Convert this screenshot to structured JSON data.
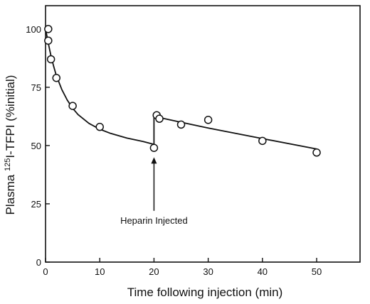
{
  "chart_data": {
    "type": "scatter",
    "xlabel": "Time following injection (min)",
    "ylabel_prefix": "Plasma ",
    "ylabel_superscript": "125",
    "ylabel_suffix": "I-TFPI (%initial)",
    "xlim": [
      0,
      58
    ],
    "ylim": [
      0,
      110
    ],
    "x_ticks": [
      0,
      10,
      20,
      30,
      40,
      50
    ],
    "y_ticks": [
      0,
      25,
      50,
      75,
      100
    ],
    "grid": false,
    "series": [
      {
        "marker": "open-circle",
        "points": [
          {
            "x": 0.5,
            "y": 100
          },
          {
            "x": 0.5,
            "y": 95
          },
          {
            "x": 1,
            "y": 87
          },
          {
            "x": 2,
            "y": 79
          },
          {
            "x": 5,
            "y": 67
          },
          {
            "x": 10,
            "y": 58
          },
          {
            "x": 20,
            "y": 49
          },
          {
            "x": 20.5,
            "y": 63
          },
          {
            "x": 21,
            "y": 61.5
          },
          {
            "x": 25,
            "y": 59
          },
          {
            "x": 30,
            "y": 61
          },
          {
            "x": 40,
            "y": 52
          },
          {
            "x": 50,
            "y": 47
          }
        ]
      }
    ],
    "fit_curves": [
      {
        "points": [
          {
            "x": 0,
            "y": 100
          },
          {
            "x": 0.5,
            "y": 94
          },
          {
            "x": 1,
            "y": 88.5
          },
          {
            "x": 1.5,
            "y": 84
          },
          {
            "x": 2,
            "y": 80
          },
          {
            "x": 3,
            "y": 74
          },
          {
            "x": 4,
            "y": 69.5
          },
          {
            "x": 5,
            "y": 66
          },
          {
            "x": 6,
            "y": 63.3
          },
          {
            "x": 8,
            "y": 59.5
          },
          {
            "x": 10,
            "y": 57
          },
          {
            "x": 12,
            "y": 55.2
          },
          {
            "x": 15,
            "y": 53.2
          },
          {
            "x": 18,
            "y": 51.7
          },
          {
            "x": 20,
            "y": 50.5
          }
        ]
      },
      {
        "points": [
          {
            "x": 20,
            "y": 50.5
          },
          {
            "x": 20,
            "y": 63
          },
          {
            "x": 21,
            "y": 62
          },
          {
            "x": 25,
            "y": 60
          },
          {
            "x": 30,
            "y": 57.5
          },
          {
            "x": 40,
            "y": 53
          },
          {
            "x": 50,
            "y": 48.5
          }
        ]
      }
    ],
    "annotations": [
      {
        "text": "Heparin Injected",
        "x": 20,
        "y_from": 22,
        "y_to": 45
      }
    ]
  }
}
